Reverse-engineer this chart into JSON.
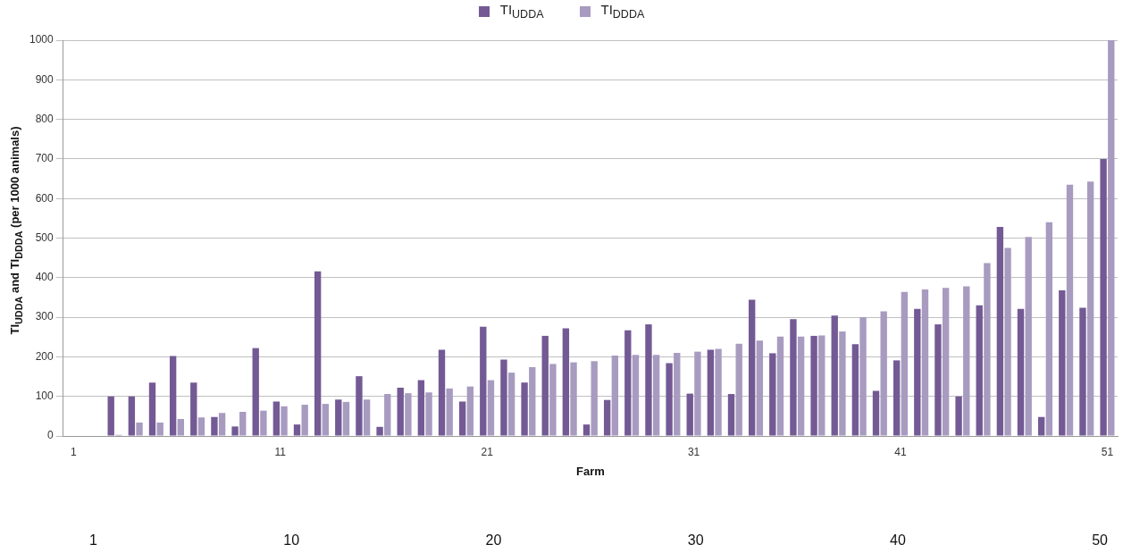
{
  "chart_data": {
    "type": "bar",
    "xlabel": "Farm",
    "ylabel": "TI$_{UDDA}$ and TI$_{DDDA}$ (per 1000 animals)",
    "categories": [
      "1",
      null,
      null,
      null,
      null,
      null,
      null,
      null,
      null,
      null,
      "11",
      null,
      null,
      null,
      null,
      null,
      null,
      null,
      null,
      null,
      "21",
      null,
      null,
      null,
      null,
      null,
      null,
      null,
      null,
      null,
      "31",
      null,
      null,
      null,
      null,
      null,
      null,
      null,
      null,
      null,
      "41",
      null,
      null,
      null,
      null,
      null,
      null,
      null,
      null,
      null,
      "51"
    ],
    "series": [
      {
        "name": "TI$_{UDDA}$",
        "color": "#735a94",
        "values": [
          null,
          null,
          100,
          100,
          135,
          202,
          135,
          48,
          24,
          222,
          87,
          29,
          416,
          92,
          151,
          23,
          122,
          141,
          218,
          87,
          276,
          193,
          135,
          253,
          272,
          29,
          91,
          267,
          282,
          184,
          107,
          218,
          106,
          344,
          209,
          295,
          253,
          304,
          232,
          114,
          191,
          321,
          282,
          100,
          330,
          528,
          321,
          48,
          368,
          324,
          700
        ]
      },
      {
        "name": "TI$_{DDDA}$",
        "color": "#a89bc0",
        "values": [
          null,
          null,
          3,
          34,
          34,
          43,
          47,
          58,
          61,
          64,
          75,
          79,
          81,
          86,
          92,
          106,
          108,
          110,
          120,
          125,
          141,
          160,
          174,
          182,
          186,
          189,
          203,
          205,
          205,
          210,
          213,
          220,
          233,
          241,
          251,
          251,
          254,
          264,
          300,
          315,
          364,
          370,
          374,
          378,
          437,
          475,
          503,
          540,
          635,
          643,
          1000
        ]
      }
    ],
    "ylim": [
      0,
      1000
    ],
    "yticks": [
      0,
      100,
      200,
      300,
      400,
      500,
      600,
      700,
      800,
      900,
      1000
    ],
    "grid": "y",
    "legend": "top",
    "annotations": [
      "1",
      "10",
      "20",
      "30",
      "40",
      "50"
    ]
  }
}
